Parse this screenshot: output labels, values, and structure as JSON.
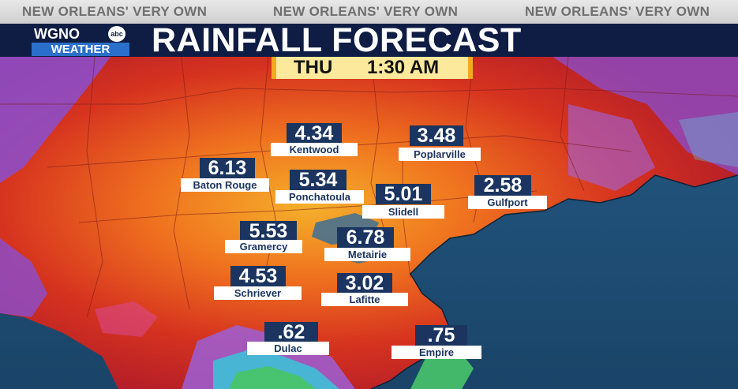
{
  "banner": {
    "tagline": "NEW ORLEANS' VERY OWN"
  },
  "logo": {
    "station": "WGNO",
    "network": "abc",
    "sub": "WEATHER"
  },
  "header": {
    "title": "RAINFALL FORECAST"
  },
  "time": {
    "day": "THU",
    "clock": "1:30 AM"
  },
  "colors": {
    "header_bg": "#0f1d44",
    "label_bg": "#1b3560",
    "accent": "#f3a91e",
    "water": "#1e4d73"
  },
  "locations": [
    {
      "city": "Kentwood",
      "value": "4.34"
    },
    {
      "city": "Poplarville",
      "value": "3.48"
    },
    {
      "city": "Baton Rouge",
      "value": "6.13"
    },
    {
      "city": "Ponchatoula",
      "value": "5.34"
    },
    {
      "city": "Slidell",
      "value": "5.01"
    },
    {
      "city": "Gulfport",
      "value": "2.58"
    },
    {
      "city": "Gramercy",
      "value": "5.53"
    },
    {
      "city": "Metairie",
      "value": "6.78"
    },
    {
      "city": "Schriever",
      "value": "4.53"
    },
    {
      "city": "Lafitte",
      "value": "3.02"
    },
    {
      "city": "Dulac",
      "value": ".62"
    },
    {
      "city": "Empire",
      "value": ".75"
    }
  ]
}
